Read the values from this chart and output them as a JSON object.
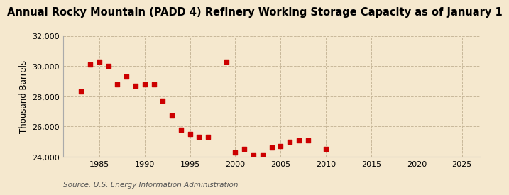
{
  "title": "Annual Rocky Mountain (PADD 4) Refinery Working Storage Capacity as of January 1",
  "ylabel": "Thousand Barrels",
  "source": "Source: U.S. Energy Information Administration",
  "background_color": "#f5e8ce",
  "plot_bg_color": "#f5e8ce",
  "grid_color": "#c8b89a",
  "marker_color": "#cc0000",
  "years": [
    1983,
    1984,
    1985,
    1986,
    1987,
    1988,
    1989,
    1990,
    1991,
    1992,
    1993,
    1994,
    1995,
    1996,
    1997,
    1999,
    2000,
    2001,
    2002,
    2003,
    2004,
    2005,
    2006,
    2007,
    2008,
    2010
  ],
  "values": [
    28300,
    30100,
    30300,
    30000,
    28800,
    29300,
    28700,
    28800,
    28800,
    27700,
    26700,
    25800,
    25500,
    25300,
    25300,
    30300,
    24300,
    24500,
    24100,
    24100,
    24600,
    24700,
    25000,
    25100,
    25100,
    24500
  ],
  "xlim": [
    1981,
    2027
  ],
  "ylim": [
    24000,
    32000
  ],
  "yticks": [
    24000,
    26000,
    28000,
    30000,
    32000
  ],
  "xticks": [
    1985,
    1990,
    1995,
    2000,
    2005,
    2010,
    2015,
    2020,
    2025
  ],
  "title_fontsize": 10.5,
  "axis_fontsize": 8.5,
  "tick_fontsize": 8,
  "source_fontsize": 7.5
}
